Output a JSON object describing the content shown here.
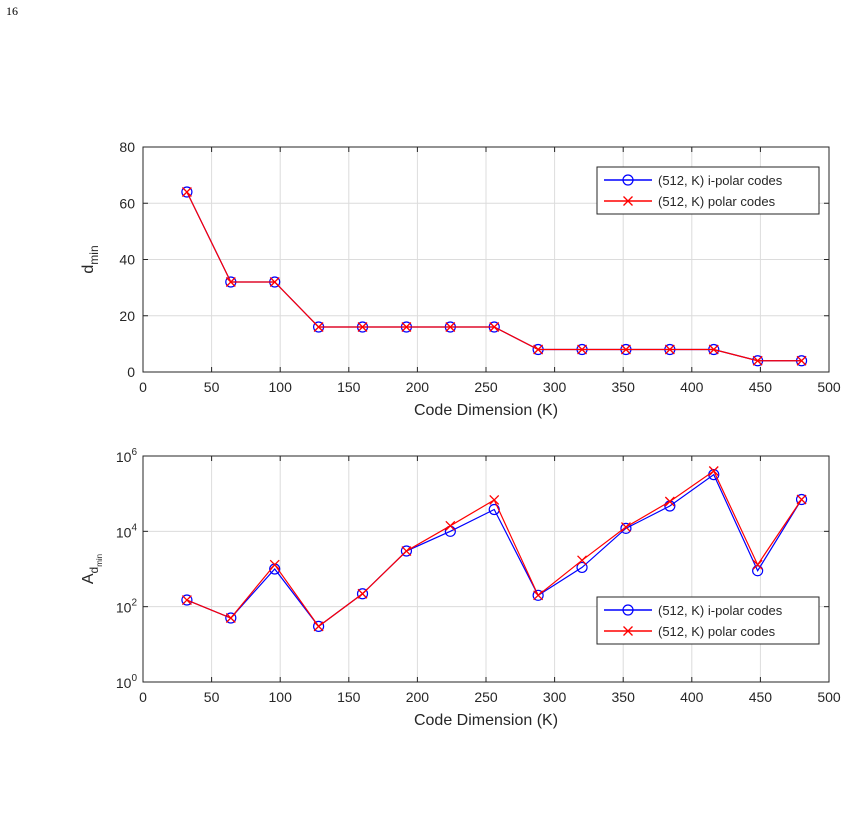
{
  "page": {
    "number": "16"
  },
  "chart_data": [
    {
      "type": "line",
      "xlabel": "Code Dimension (K)",
      "ylabel": "d",
      "ylabel_sub": "min",
      "xlim": [
        0,
        500
      ],
      "ylim": [
        0,
        80
      ],
      "yscale": "linear",
      "xticks": [
        0,
        50,
        100,
        150,
        200,
        250,
        300,
        350,
        400,
        450,
        500
      ],
      "yticks": [
        0,
        20,
        40,
        60,
        80
      ],
      "grid": true,
      "legend_position": "top-right",
      "x": [
        32,
        64,
        96,
        128,
        160,
        192,
        224,
        256,
        288,
        320,
        352,
        384,
        416,
        448,
        480
      ],
      "series": [
        {
          "name": "(512, K) i-polar codes",
          "color": "#0000ff",
          "marker": "circle",
          "values": [
            64,
            32,
            32,
            16,
            16,
            16,
            16,
            16,
            8,
            8,
            8,
            8,
            8,
            4,
            4
          ]
        },
        {
          "name": "(512, K) polar codes",
          "color": "#ff0000",
          "marker": "x",
          "values": [
            64,
            32,
            32,
            16,
            16,
            16,
            16,
            16,
            8,
            8,
            8,
            8,
            8,
            4,
            4
          ]
        }
      ]
    },
    {
      "type": "line",
      "xlabel": "Code Dimension (K)",
      "ylabel": "A",
      "ylabel_sub": "d",
      "ylabel_subsub": "min",
      "xlim": [
        0,
        500
      ],
      "ylim": [
        1,
        1000000
      ],
      "yscale": "log",
      "xticks": [
        0,
        50,
        100,
        150,
        200,
        250,
        300,
        350,
        400,
        450,
        500
      ],
      "ytick_exponents": [
        0,
        2,
        4,
        6
      ],
      "ytick_base": "10",
      "grid": true,
      "legend_position": "lower-right",
      "x": [
        32,
        64,
        96,
        128,
        160,
        192,
        224,
        256,
        288,
        320,
        352,
        384,
        416,
        448,
        480
      ],
      "series": [
        {
          "name": "(512, K) i-polar codes",
          "color": "#0000ff",
          "marker": "circle",
          "values": [
            150,
            50,
            1000,
            30,
            220,
            3000,
            10000,
            38000,
            200,
            1100,
            12000,
            47000,
            320000,
            900,
            70000
          ]
        },
        {
          "name": "(512, K) polar codes",
          "color": "#ff0000",
          "marker": "x",
          "values": [
            150,
            50,
            1300,
            30,
            220,
            3000,
            14000,
            68000,
            200,
            1700,
            13000,
            62000,
            400000,
            1300,
            70000
          ]
        }
      ]
    }
  ]
}
